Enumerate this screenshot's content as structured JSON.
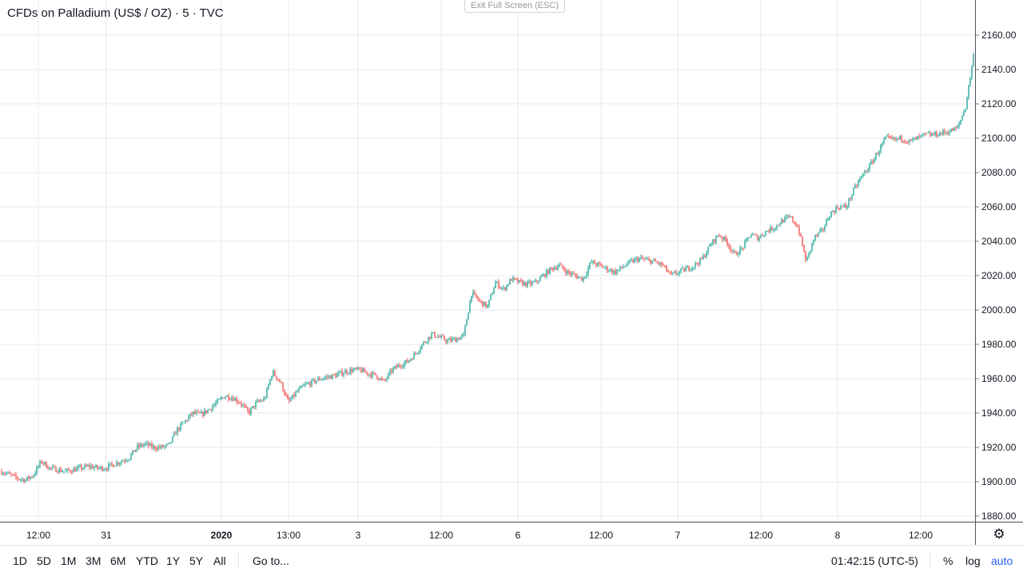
{
  "header": {
    "title": "CFDs on Palladium (US$ / OZ) · 5 · TVC",
    "exit_fullscreen": "Exit Full Screen (ESC)"
  },
  "range_buttons": [
    "1D",
    "5D",
    "1M",
    "3M",
    "6M",
    "YTD",
    "1Y",
    "5Y",
    "All"
  ],
  "goto_label": "Go to...",
  "clock": "01:42:15 (UTC-5)",
  "scale_options": {
    "percent": "%",
    "log": "log",
    "auto": "auto"
  },
  "settings_icon": "gear-icon",
  "colors": {
    "up": "#26a69a",
    "down": "#ef5350",
    "grid": "#e6e9ef",
    "axis_text": "#131722",
    "accent": "#2962ff"
  },
  "chart_data": {
    "type": "candlestick",
    "title": "CFDs on Palladium (US$ / OZ) · 5 · TVC",
    "ylim": [
      1873,
      2168
    ],
    "y_ticks": [
      1880,
      1900,
      1920,
      1940,
      1960,
      1980,
      2000,
      2020,
      2040,
      2060,
      2080,
      2100,
      2120,
      2140,
      2160
    ],
    "x_ticks": [
      "12:00",
      "31",
      "2020",
      "13:00",
      "3",
      "12:00",
      "6",
      "12:00",
      "7",
      "12:00",
      "8",
      "12:00"
    ],
    "x_tick_bold": [
      false,
      false,
      true,
      false,
      false,
      false,
      false,
      false,
      false,
      false,
      false,
      false
    ],
    "grid": true,
    "series": [
      {
        "values": [
          1906,
          1904,
          1902,
          1901,
          1904,
          1912,
          1908,
          1907,
          1906,
          1907,
          1908,
          1909,
          1908,
          1908,
          1910,
          1912,
          1914,
          1920,
          1922,
          1920,
          1920,
          1921,
          1930,
          1935,
          1940,
          1939,
          1942,
          1946,
          1950,
          1949,
          1946,
          1940,
          1946,
          1948,
          1964,
          1958,
          1946,
          1952,
          1956,
          1958,
          1960,
          1961,
          1962,
          1964,
          1965,
          1965,
          1963,
          1962,
          1958,
          1965,
          1968,
          1970,
          1975,
          1981,
          1986,
          1984,
          1982,
          1983,
          1985,
          2010,
          2005,
          2002,
          2016,
          2012,
          2018,
          2016,
          2015,
          2016,
          2020,
          2024,
          2026,
          2022,
          2020,
          2018,
          2028,
          2026,
          2024,
          2022,
          2025,
          2028,
          2030,
          2029,
          2028,
          2026,
          2020,
          2022,
          2024,
          2026,
          2030,
          2038,
          2044,
          2040,
          2032,
          2036,
          2044,
          2042,
          2046,
          2048,
          2052,
          2054,
          2048,
          2028,
          2042,
          2046,
          2056,
          2060,
          2060,
          2070,
          2078,
          2084,
          2092,
          2100,
          2099,
          2100,
          2098,
          2100,
          2102,
          2102,
          2103,
          2104,
          2106,
          2118,
          2148
        ]
      }
    ]
  }
}
